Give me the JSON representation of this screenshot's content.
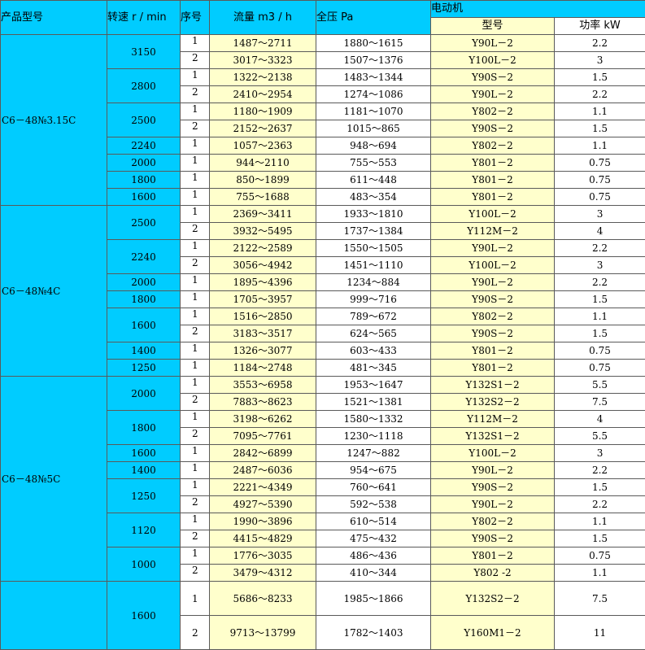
{
  "header": {
    "model": "产品型号",
    "speed": "转速 r / min",
    "seq": "序号",
    "flow": "流量 m3 / h",
    "pressure": "全压 Pa",
    "motor": "电动机",
    "motor_type": "型号",
    "power": "功率 kW"
  },
  "models": [
    {
      "name": "C6－48№3.15C",
      "speeds": [
        {
          "rpm": "3150",
          "rows": [
            [
              "1",
              "1487～2711",
              "1880～1615",
              "Y90L－2",
              "2.2"
            ],
            [
              "2",
              "3017～3323",
              "1507～1376",
              "Y100L－2",
              "3"
            ]
          ]
        },
        {
          "rpm": "2800",
          "rows": [
            [
              "1",
              "1322～2138",
              "1483～1344",
              "Y90S－2",
              "1.5"
            ],
            [
              "2",
              "2410～2954",
              "1274～1086",
              "Y90L－2",
              "2.2"
            ]
          ]
        },
        {
          "rpm": "2500",
          "rows": [
            [
              "1",
              "1180～1909",
              "1181～1070",
              "Y802－2",
              "1.1"
            ],
            [
              "2",
              "2152～2637",
              "1015～865",
              "Y90S－2",
              "1.5"
            ]
          ]
        },
        {
          "rpm": "2240",
          "rows": [
            [
              "1",
              "1057～2363",
              "948～694",
              "Y802－2",
              "1.1"
            ]
          ]
        },
        {
          "rpm": "2000",
          "rows": [
            [
              "1",
              "944～2110",
              "755～553",
              "Y801－2",
              "0.75"
            ]
          ]
        },
        {
          "rpm": "1800",
          "rows": [
            [
              "1",
              "850～1899",
              "611～448",
              "Y801－2",
              "0.75"
            ]
          ]
        },
        {
          "rpm": "1600",
          "rows": [
            [
              "1",
              "755～1688",
              "483～354",
              "Y801－2",
              "0.75"
            ]
          ]
        }
      ]
    },
    {
      "name": "C6－48№4C",
      "speeds": [
        {
          "rpm": "2500",
          "rows": [
            [
              "1",
              "2369～3411",
              "1933～1810",
              "Y100L－2",
              "3"
            ],
            [
              "2",
              "3932～5495",
              "1737～1384",
              "Y112M－2",
              "4"
            ]
          ]
        },
        {
          "rpm": "2240",
          "rows": [
            [
              "1",
              "2122～2589",
              "1550～1505",
              "Y90L－2",
              "2.2"
            ],
            [
              "2",
              "3056～4942",
              "1451～1110",
              "Y100L－2",
              "3"
            ]
          ]
        },
        {
          "rpm": "2000",
          "rows": [
            [
              "1",
              "1895～4396",
              "1234～884",
              "Y90L－2",
              "2.2"
            ]
          ]
        },
        {
          "rpm": "1800",
          "rows": [
            [
              "1",
              "1705～3957",
              "999～716",
              "Y90S－2",
              "1.5"
            ]
          ]
        },
        {
          "rpm": "1600",
          "rows": [
            [
              "1",
              "1516～2850",
              "789～672",
              "Y802－2",
              "1.1"
            ],
            [
              "2",
              "3183～3517",
              "624～565",
              "Y90S－2",
              "1.5"
            ]
          ]
        },
        {
          "rpm": "1400",
          "rows": [
            [
              "1",
              "1326～3077",
              "603～433",
              "Y801－2",
              "0.75"
            ]
          ]
        },
        {
          "rpm": "1250",
          "rows": [
            [
              "1",
              "1184～2748",
              "481～345",
              "Y801－2",
              "0.75"
            ]
          ]
        }
      ]
    },
    {
      "name": "C6－48№5C",
      "speeds": [
        {
          "rpm": "2000",
          "rows": [
            [
              "1",
              "3553～6958",
              "1953～1647",
              "Y132S1－2",
              "5.5"
            ],
            [
              "2",
              "7883～8623",
              "1521～1381",
              "Y132S2－2",
              "7.5"
            ]
          ]
        },
        {
          "rpm": "1800",
          "rows": [
            [
              "1",
              "3198～6262",
              "1580～1332",
              "Y112M－2",
              "4"
            ],
            [
              "2",
              "7095～7761",
              "1230～1118",
              "Y132S1－2",
              "5.5"
            ]
          ]
        },
        {
          "rpm": "1600",
          "rows": [
            [
              "1",
              "2842～6899",
              "1247～882",
              "Y100L－2",
              "3"
            ]
          ]
        },
        {
          "rpm": "1400",
          "rows": [
            [
              "1",
              "2487～6036",
              "954～675",
              "Y90L－2",
              "2.2"
            ]
          ]
        },
        {
          "rpm": "1250",
          "rows": [
            [
              "1",
              "2221～4349",
              "760～641",
              "Y90S－2",
              "1.5"
            ],
            [
              "2",
              "4927～5390",
              "592～538",
              "Y90L－2",
              "2.2"
            ]
          ]
        },
        {
          "rpm": "1120",
          "rows": [
            [
              "1",
              "1990～3896",
              "610～514",
              "Y802－2",
              "1.1"
            ],
            [
              "2",
              "4415～4829",
              "475～432",
              "Y90S－2",
              "1.5"
            ]
          ]
        },
        {
          "rpm": "1000",
          "rows": [
            [
              "1",
              "1776～3035",
              "486～436",
              "Y801－2",
              "0.75"
            ],
            [
              "2",
              "3479～4312",
              "410～344",
              "Y802 -2",
              "1.1"
            ]
          ]
        }
      ]
    },
    {
      "name": "",
      "tall": true,
      "speeds": [
        {
          "rpm": "1600",
          "rows": [
            [
              "1",
              "5686～8233",
              "1985～1866",
              "Y132S2－2",
              "7.5"
            ],
            [
              "2",
              "9713～13799",
              "1782～1403",
              "Y160M1－2",
              "11"
            ]
          ]
        }
      ]
    }
  ]
}
